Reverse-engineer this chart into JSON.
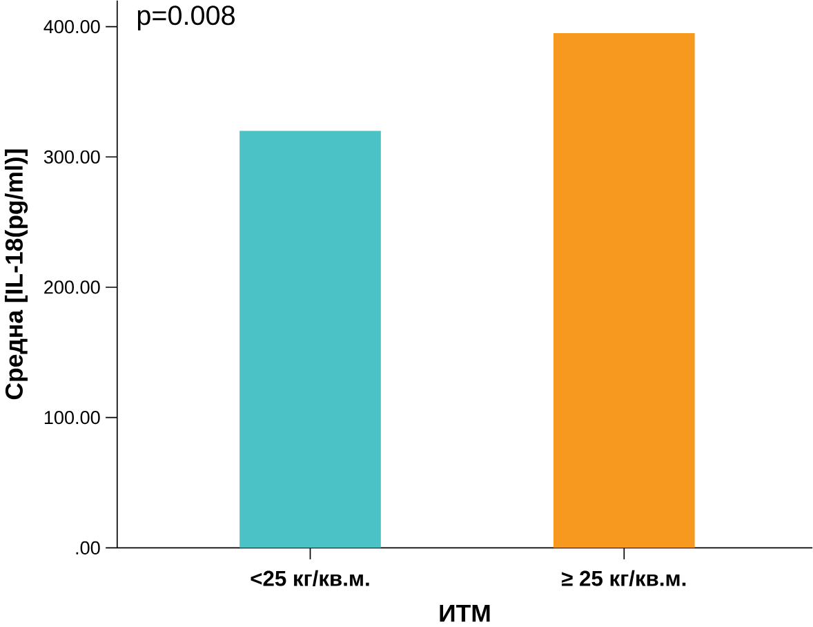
{
  "chart_data": {
    "type": "bar",
    "xlabel": "ИТМ",
    "ylabel": "Средна [IL-18(pg/ml)]",
    "categories": [
      "<25 кг/кв.м.",
      "≥ 25 кг/кв.м."
    ],
    "values": [
      320,
      395
    ],
    "colors": [
      "#4bc2c5",
      "#f7991f"
    ],
    "ylim": [
      0,
      420
    ],
    "yticks": [
      {
        "value": 0,
        "label": ".00"
      },
      {
        "value": 100,
        "label": "100.00"
      },
      {
        "value": 200,
        "label": "200.00"
      },
      {
        "value": 300,
        "label": "300.00"
      },
      {
        "value": 400,
        "label": "400.00"
      }
    ],
    "annotations": [
      "p=0.008"
    ]
  }
}
